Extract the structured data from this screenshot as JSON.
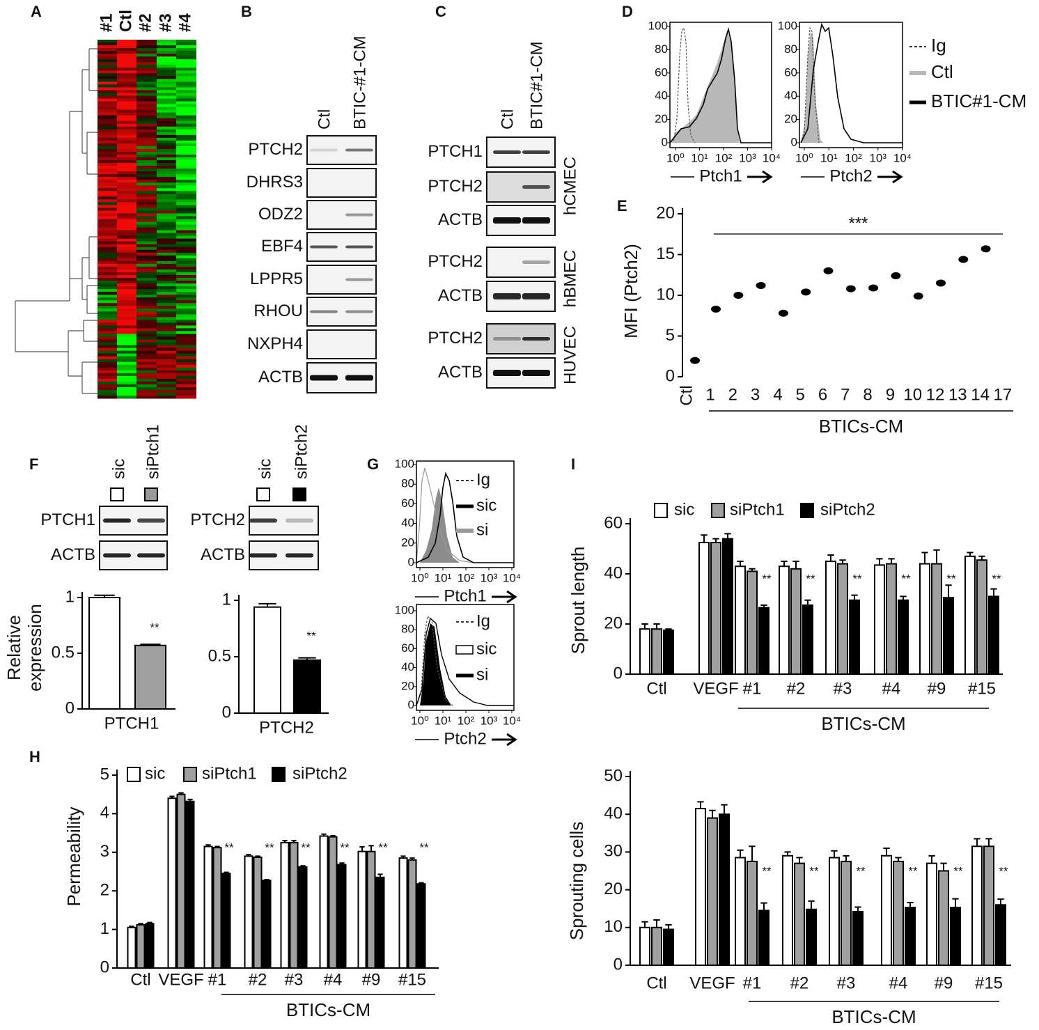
{
  "panel_labels": [
    "A",
    "B",
    "C",
    "D",
    "E",
    "F",
    "G",
    "H",
    "I"
  ],
  "heatmap": {
    "columns": [
      "#1",
      "Ctl",
      "#2",
      "#3",
      "#4"
    ]
  },
  "blot_b": {
    "lanes": [
      "Ctl",
      "BTIC-#1-CM"
    ],
    "genes": [
      "PTCH2",
      "DHRS3",
      "ODZ2",
      "EBF4",
      "LPPR5",
      "RHOU",
      "NXPH4",
      "ACTB"
    ]
  },
  "blot_c": {
    "lanes": [
      "Ctl",
      "BTIC#1-CM"
    ],
    "groups": [
      {
        "name": "hCMEC",
        "genes": [
          "PTCH1",
          "PTCH2",
          "ACTB"
        ]
      },
      {
        "name": "hBMEC",
        "genes": [
          "PTCH2",
          "ACTB"
        ]
      },
      {
        "name": "HUVEC",
        "genes": [
          "PTCH2",
          "ACTB"
        ]
      }
    ]
  },
  "flow_d": {
    "xscale": "log",
    "xlim": [
      1,
      10000
    ],
    "ylim": [
      0,
      100
    ],
    "xticks": [
      {
        "value": 1,
        "label": "10⁰"
      },
      {
        "value": 10,
        "label": "10¹"
      },
      {
        "value": 100,
        "label": "10²"
      },
      {
        "value": 1000,
        "label": "10³"
      },
      {
        "value": 10000,
        "label": "10⁴"
      }
    ],
    "yticks": [
      0,
      20,
      40,
      60,
      80,
      100
    ],
    "plots": [
      {
        "xlabel": "Ptch1"
      },
      {
        "xlabel": "Ptch2"
      }
    ],
    "legend": [
      "Ig",
      "Ctl",
      "BTIC#1-CM"
    ]
  },
  "blot_f": [
    {
      "lanes": [
        "sic",
        "siPtch1"
      ],
      "genes": [
        "PTCH1",
        "ACTB"
      ]
    },
    {
      "lanes": [
        "sic",
        "siPtch2"
      ],
      "genes": [
        "PTCH2",
        "ACTB"
      ]
    }
  ],
  "flow_g": {
    "xscale": "log",
    "xlim": [
      1,
      10000
    ],
    "ylim": [
      0,
      100
    ],
    "xticks": [
      {
        "value": 1,
        "label": "10⁰"
      },
      {
        "value": 10,
        "label": "10¹"
      },
      {
        "value": 100,
        "label": "10²"
      },
      {
        "value": 1000,
        "label": "10³"
      },
      {
        "value": 10000,
        "label": "10⁴"
      }
    ],
    "yticks": [
      0,
      20,
      40,
      60,
      80,
      100
    ],
    "plots": [
      {
        "xlabel": "Ptch1",
        "legend": [
          "Ig",
          "sic",
          "si"
        ]
      },
      {
        "xlabel": "Ptch2",
        "legend": [
          "Ig",
          "sic",
          "si"
        ]
      }
    ]
  },
  "chart_data": [
    {
      "type": "scatter",
      "ylabel": "MFI (Ptch2)",
      "xlabel": "BTICs-CM",
      "annotation": "***",
      "categories": [
        "Ctl",
        "1",
        "2",
        "3",
        "4",
        "5",
        "6",
        "7",
        "8",
        "9",
        "10",
        "12",
        "13",
        "14",
        "17"
      ],
      "values": [
        2,
        8.3,
        10,
        11.2,
        7.8,
        10.4,
        13,
        10.8,
        10.9,
        12.4,
        9.9,
        11.5,
        14.4,
        15.7,
        null
      ],
      "color": "#000000",
      "ylim": [
        0,
        20
      ],
      "yticks": [
        0,
        5,
        10,
        15,
        20
      ]
    },
    {
      "type": "bar",
      "ylabel": [
        "Relative",
        "expression"
      ],
      "xlabel": "PTCH1",
      "annotation": "**",
      "values": [
        1.0,
        0.57
      ],
      "errors": [
        0.02,
        0.01
      ],
      "colors": [
        "#ffffff",
        "#a0a0a0"
      ],
      "ylim": [
        0,
        1
      ],
      "yticks": [
        0,
        0.5,
        1
      ]
    },
    {
      "type": "bar",
      "xlabel": "PTCH2",
      "annotation": "**",
      "values": [
        0.94,
        0.47
      ],
      "errors": [
        0.03,
        0.02
      ],
      "colors": [
        "#ffffff",
        "#000000"
      ],
      "ylim": [
        0,
        1
      ],
      "yticks": [
        0,
        0.5,
        1
      ]
    },
    {
      "type": "bar",
      "ylabel": "Permeability",
      "xlabel": "BTICs-CM",
      "categories": [
        "Ctl",
        "VEGF",
        "#1",
        "#2",
        "#3",
        "#4",
        "#9",
        "#15"
      ],
      "annotations": [
        null,
        null,
        "**",
        "**",
        "**",
        "**",
        "**",
        "**"
      ],
      "series": [
        {
          "name": "sic",
          "color": "#ffffff",
          "values": [
            1.05,
            4.4,
            3.15,
            2.9,
            3.25,
            3.42,
            3.02,
            2.85
          ],
          "errors": [
            0.03,
            0.05,
            0.04,
            0.04,
            0.05,
            0.05,
            0.12,
            0.05
          ]
        },
        {
          "name": "siPtch1",
          "color": "#a0a0a0",
          "values": [
            1.12,
            4.5,
            3.12,
            2.87,
            3.25,
            3.4,
            3.02,
            2.8
          ],
          "errors": [
            0.03,
            0.04,
            0.03,
            0.03,
            0.05,
            0.03,
            0.15,
            0.05
          ]
        },
        {
          "name": "siPtch2",
          "color": "#000000",
          "values": [
            1.15,
            4.32,
            2.45,
            2.27,
            2.62,
            2.68,
            2.35,
            2.18
          ],
          "errors": [
            0.03,
            0.05,
            0.03,
            0.02,
            0.03,
            0.04,
            0.08,
            0.03
          ]
        }
      ],
      "ylim": [
        0,
        5
      ],
      "yticks": [
        0,
        1,
        2,
        3,
        4,
        5
      ]
    },
    {
      "type": "bar",
      "ylabel": "Sprout length",
      "xlabel": "BTICs-CM",
      "categories": [
        "Ctl",
        "VEGF",
        "#1",
        "#2",
        "#3",
        "#4",
        "#9",
        "#15"
      ],
      "annotations": [
        null,
        null,
        "**",
        "**",
        "**",
        "**",
        "**",
        "**"
      ],
      "series": [
        {
          "name": "sic",
          "color": "#ffffff",
          "values": [
            18,
            52.5,
            43,
            43,
            45,
            43.5,
            44,
            47
          ],
          "errors": [
            2,
            3,
            2,
            2,
            2.5,
            2.5,
            4.5,
            1.5
          ]
        },
        {
          "name": "siPtch1",
          "color": "#a0a0a0",
          "values": [
            18,
            52.5,
            41,
            42,
            44,
            44,
            44,
            45.5
          ],
          "errors": [
            2,
            1.5,
            1,
            3,
            1.5,
            2,
            5.5,
            1.5
          ]
        },
        {
          "name": "siPtch2",
          "color": "#000000",
          "values": [
            17.5,
            54,
            26.5,
            27.5,
            29.5,
            29.5,
            30.5,
            31
          ],
          "errors": [
            0.5,
            2,
            1,
            2,
            2,
            1.5,
            5,
            3
          ]
        }
      ],
      "ylim": [
        0,
        60
      ],
      "yticks": [
        0,
        20,
        40,
        60
      ]
    },
    {
      "type": "bar",
      "ylabel": "Sprouting cells",
      "xlabel": "BTICs-CM",
      "categories": [
        "Ctl",
        "VEGF",
        "#1",
        "#2",
        "#3",
        "#4",
        "#9",
        "#15"
      ],
      "annotations": [
        null,
        null,
        "**",
        "**",
        "**",
        "**",
        "**",
        "**"
      ],
      "series": [
        {
          "color": "#ffffff",
          "values": [
            10,
            41.5,
            28.5,
            29,
            28.5,
            29,
            27,
            31.5
          ],
          "errors": [
            1.5,
            1.8,
            2,
            1,
            1.8,
            2,
            2,
            2
          ]
        },
        {
          "color": "#a0a0a0",
          "values": [
            10,
            39,
            27.5,
            27,
            27.5,
            27.5,
            25,
            31.5
          ],
          "errors": [
            2,
            2,
            4,
            1.5,
            1.5,
            1,
            2,
            2
          ]
        },
        {
          "color": "#000000",
          "values": [
            9.5,
            40,
            14.5,
            14.8,
            14.2,
            15.3,
            15.3,
            16
          ],
          "errors": [
            1.2,
            2.5,
            2,
            2.2,
            1.2,
            1.3,
            2.3,
            1.5
          ]
        }
      ],
      "ylim": [
        0,
        50
      ],
      "yticks": [
        0,
        10,
        20,
        30,
        40,
        50
      ]
    }
  ]
}
